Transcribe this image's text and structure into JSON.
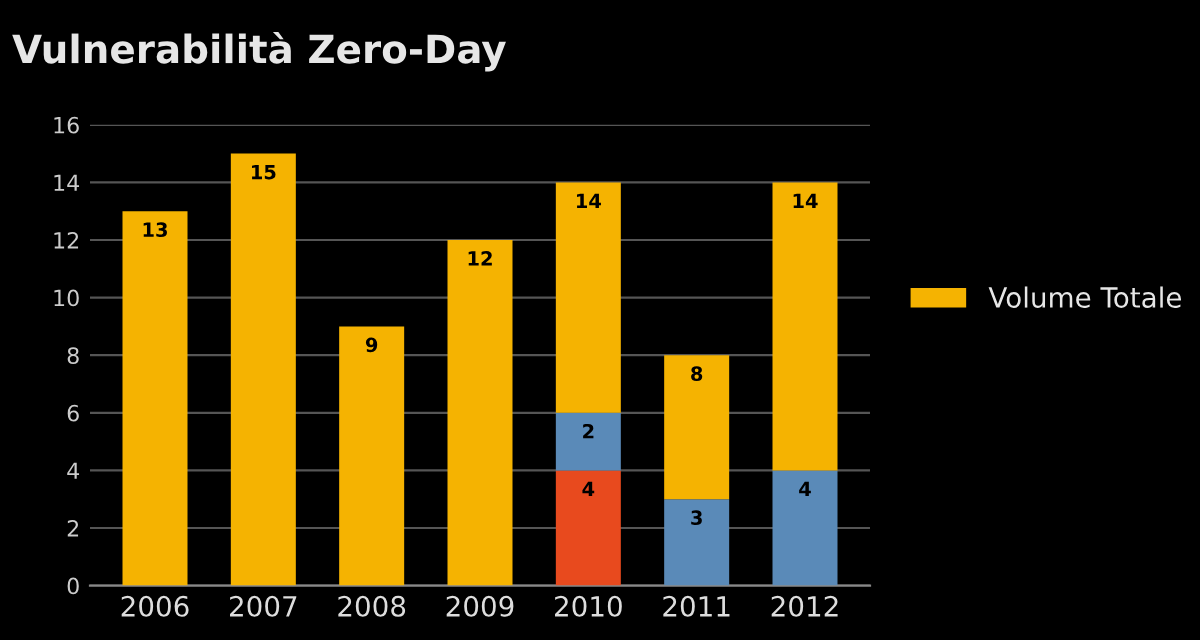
{
  "chart_data": {
    "type": "bar",
    "title": "Vulnerabilità Zero-Day",
    "categories": [
      "2006",
      "2007",
      "2008",
      "2009",
      "2010",
      "2011",
      "2012"
    ],
    "stacked": true,
    "series": [
      {
        "color": "#e84a1e",
        "values": [
          null,
          null,
          null,
          null,
          4,
          null,
          null
        ],
        "value_labels": [
          null,
          null,
          null,
          null,
          "4",
          null,
          null
        ]
      },
      {
        "color": "#5a8ab8",
        "values": [
          null,
          null,
          null,
          null,
          2,
          3,
          4
        ],
        "value_labels": [
          null,
          null,
          null,
          null,
          "2",
          "3",
          "4"
        ]
      },
      {
        "name": "Volume Totale",
        "color": "#f5b301",
        "values": [
          13,
          15,
          9,
          12,
          8,
          5,
          10
        ]
      }
    ],
    "totals": [
      "13",
      "15",
      "9",
      "12",
      "14",
      "8",
      "14"
    ],
    "ylim": [
      0,
      16
    ],
    "yticks": [
      0,
      2,
      4,
      6,
      8,
      10,
      12,
      14,
      16
    ],
    "grid": "y",
    "legend": "right"
  }
}
